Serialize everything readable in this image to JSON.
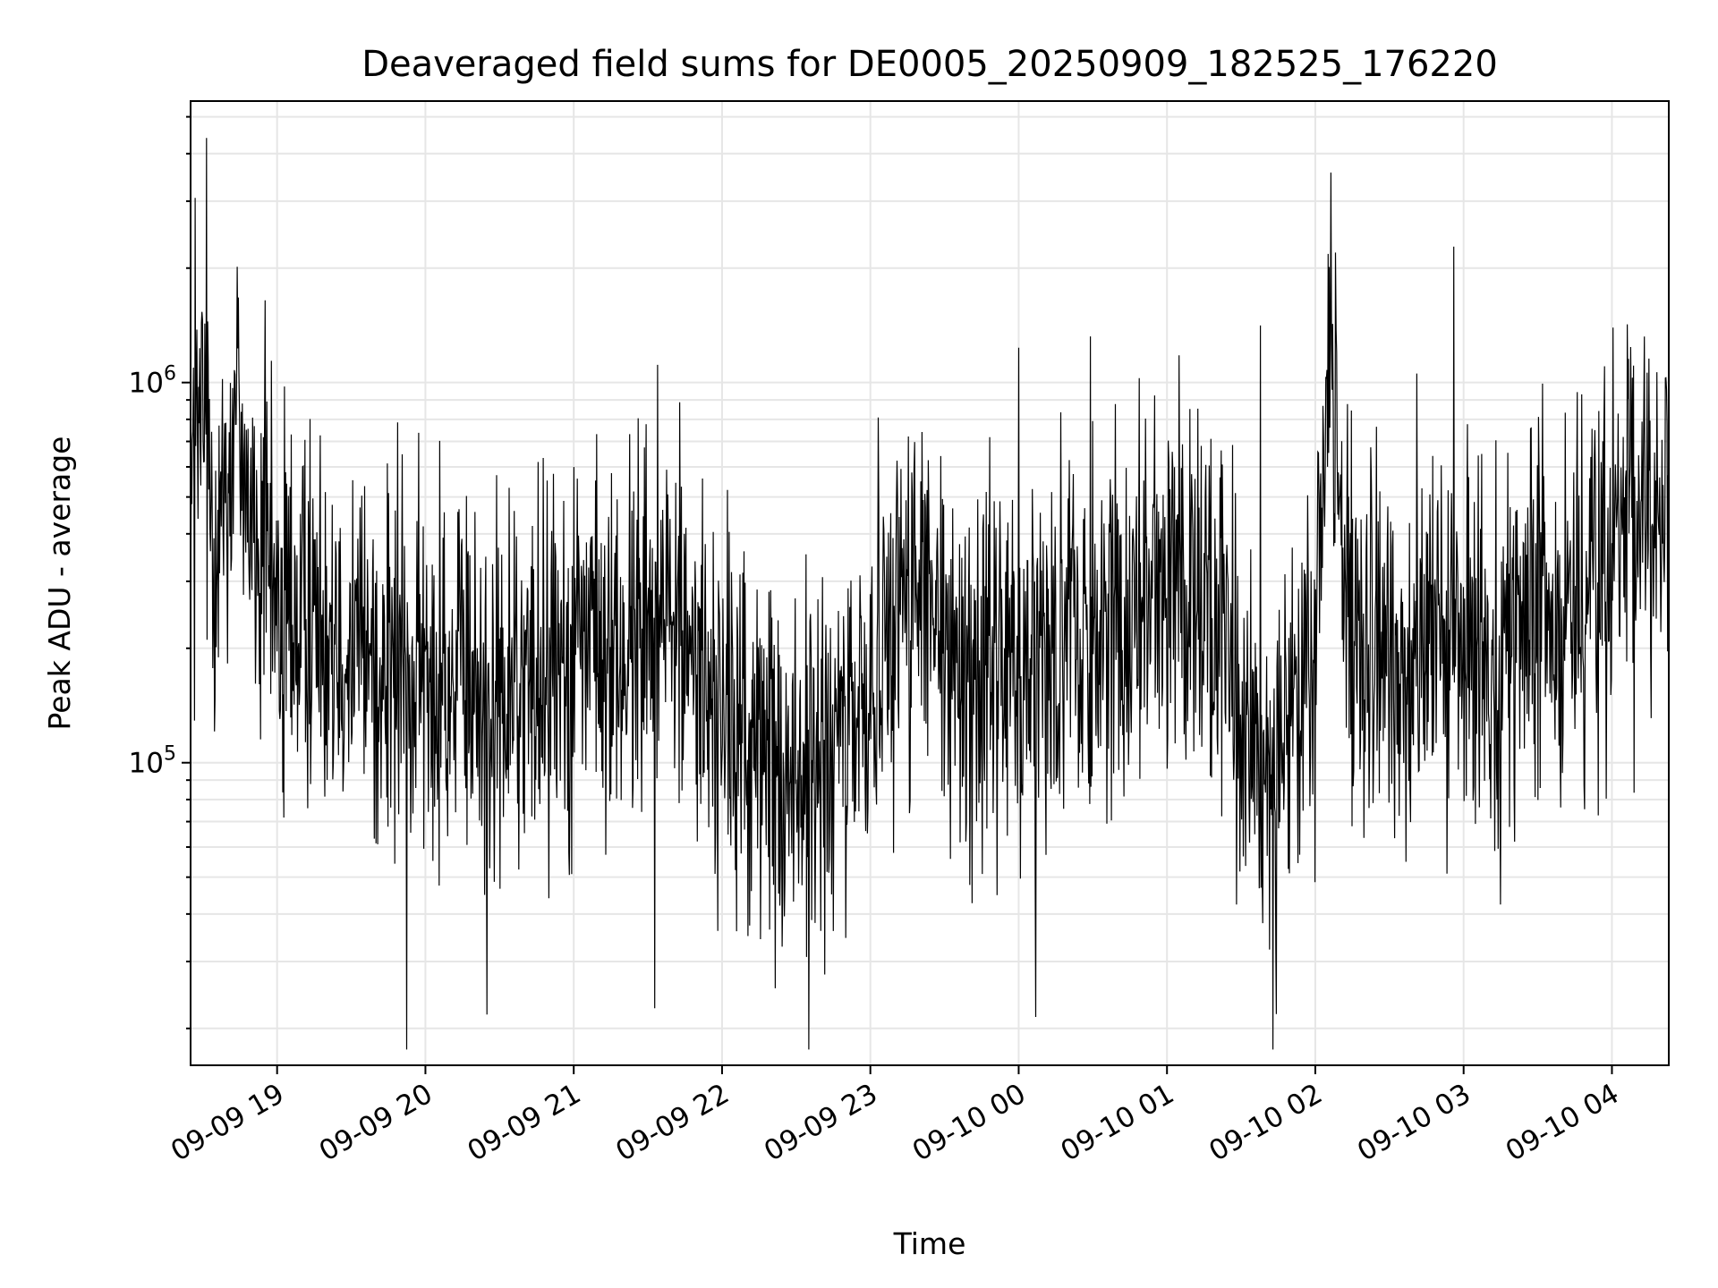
{
  "chart_data": {
    "type": "line",
    "title": "Deaveraged field sums for DE0005_20250909_182525_176220",
    "xlabel": "Time",
    "ylabel": "Peak ADU - average",
    "yscale": "log",
    "ylim": [
      16000,
      5500000
    ],
    "xlim": [
      "2025-09-09 18:25",
      "2025-09-10 04:23"
    ],
    "x_ticks": [
      "09-09 19",
      "09-09 20",
      "09-09 21",
      "09-09 22",
      "09-09 23",
      "09-10 00",
      "09-10 01",
      "09-10 02",
      "09-10 03",
      "09-10 04"
    ],
    "y_ticks": [
      {
        "value": 100000,
        "base": "10",
        "exp": "5"
      },
      {
        "value": 1000000,
        "base": "10",
        "exp": "6"
      }
    ],
    "grid": true,
    "line_color": "#000000",
    "series": [
      {
        "points": [
          [
            "2025-09-09 18:25",
            500000
          ],
          [
            "2025-09-09 18:30",
            850000
          ],
          [
            "2025-09-09 18:35",
            420000
          ],
          [
            "2025-09-09 18:40",
            600000
          ],
          [
            "2025-09-09 18:45",
            900000
          ],
          [
            "2025-09-09 18:50",
            380000
          ],
          [
            "2025-09-09 18:55",
            300000
          ],
          [
            "2025-09-09 19:00",
            260000
          ],
          [
            "2025-09-09 19:10",
            230000
          ],
          [
            "2025-09-09 19:20",
            270000
          ],
          [
            "2025-09-09 19:30",
            220000
          ],
          [
            "2025-09-09 19:40",
            180000
          ],
          [
            "2025-09-09 19:50",
            170000
          ],
          [
            "2025-09-09 20:00",
            160000
          ],
          [
            "2025-09-09 20:10",
            165000
          ],
          [
            "2025-09-09 20:20",
            150000
          ],
          [
            "2025-09-09 20:30",
            140000
          ],
          [
            "2025-09-09 20:40",
            155000
          ],
          [
            "2025-09-09 20:50",
            190000
          ],
          [
            "2025-09-09 21:00",
            230000
          ],
          [
            "2025-09-09 21:10",
            200000
          ],
          [
            "2025-09-09 21:20",
            180000
          ],
          [
            "2025-09-09 21:30",
            250000
          ],
          [
            "2025-09-09 21:40",
            260000
          ],
          [
            "2025-09-09 21:50",
            180000
          ],
          [
            "2025-09-09 22:00",
            130000
          ],
          [
            "2025-09-09 22:10",
            110000
          ],
          [
            "2025-09-09 22:20",
            100000
          ],
          [
            "2025-09-09 22:30",
            95000
          ],
          [
            "2025-09-09 22:40",
            90000
          ],
          [
            "2025-09-09 22:50",
            110000
          ],
          [
            "2025-09-09 23:00",
            160000
          ],
          [
            "2025-09-09 23:10",
            300000
          ],
          [
            "2025-09-09 23:20",
            270000
          ],
          [
            "2025-09-09 23:30",
            180000
          ],
          [
            "2025-09-09 23:40",
            175000
          ],
          [
            "2025-09-09 23:50",
            180000
          ],
          [
            "2025-09-10 00:00",
            190000
          ],
          [
            "2025-09-10 00:10",
            200000
          ],
          [
            "2025-09-10 00:20",
            230000
          ],
          [
            "2025-09-10 00:30",
            220000
          ],
          [
            "2025-09-10 00:40",
            240000
          ],
          [
            "2025-09-10 00:50",
            300000
          ],
          [
            "2025-09-10 01:00",
            320000
          ],
          [
            "2025-09-10 01:10",
            330000
          ],
          [
            "2025-09-10 01:20",
            250000
          ],
          [
            "2025-09-10 01:30",
            110000
          ],
          [
            "2025-09-10 01:40",
            100000
          ],
          [
            "2025-09-10 01:50",
            130000
          ],
          [
            "2025-09-10 02:00",
            180000
          ],
          [
            "2025-09-10 02:05",
            1200000
          ],
          [
            "2025-09-10 02:10",
            600000
          ],
          [
            "2025-09-10 02:15",
            180000
          ],
          [
            "2025-09-10 02:30",
            190000
          ],
          [
            "2025-09-10 02:45",
            200000
          ],
          [
            "2025-09-10 03:00",
            190000
          ],
          [
            "2025-09-10 03:15",
            210000
          ],
          [
            "2025-09-10 03:30",
            220000
          ],
          [
            "2025-09-10 03:45",
            260000
          ],
          [
            "2025-09-10 04:00",
            350000
          ],
          [
            "2025-09-10 04:10",
            450000
          ],
          [
            "2025-09-10 04:23",
            480000
          ]
        ]
      }
    ]
  }
}
